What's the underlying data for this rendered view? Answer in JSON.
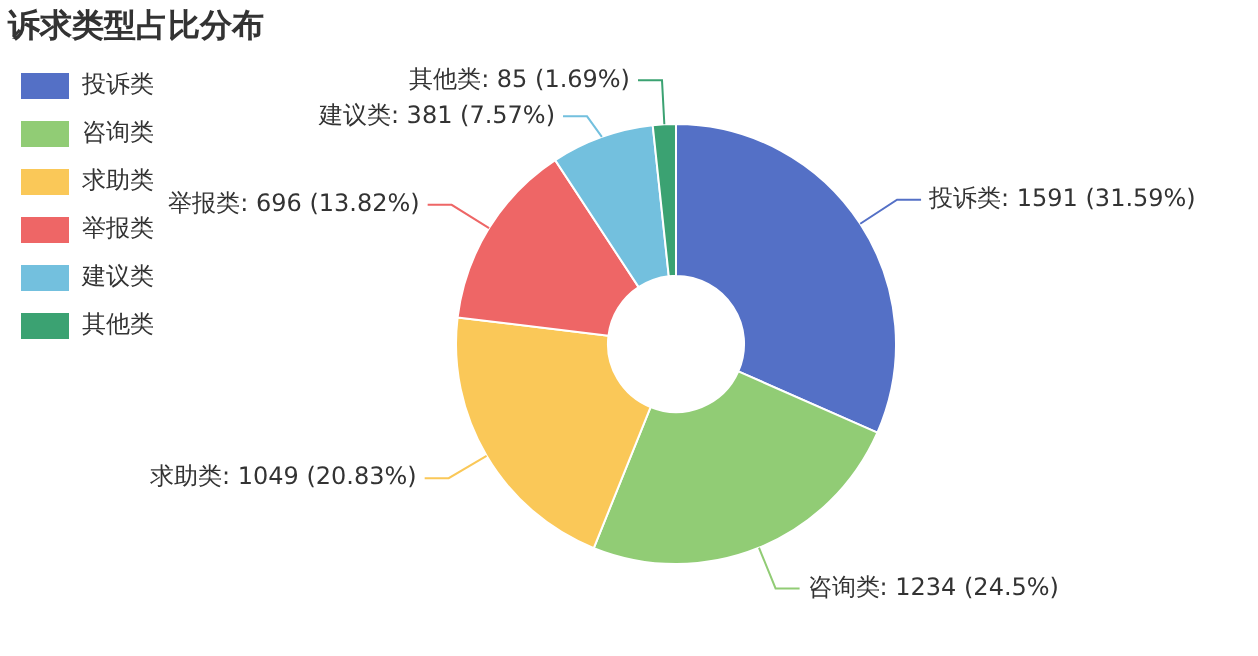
{
  "chart_data": {
    "type": "donut",
    "title": "诉求类型占比分布",
    "categories": [
      "投诉类",
      "咨询类",
      "求助类",
      "举报类",
      "建议类",
      "其他类"
    ],
    "values": [
      1591,
      1234,
      1049,
      696,
      381,
      85
    ],
    "colors": [
      "#5470c6",
      "#91cc75",
      "#fac858",
      "#ee6666",
      "#73c0de",
      "#3ba272"
    ],
    "value_labels": [
      "投诉类: 1591 (31.59%)",
      "咨询类: 1234 (24.5%)",
      "求助类: 1049 (20.83%)",
      "举报类: 696 (13.82%)",
      "建议类: 381 (7.57%)",
      "其他类: 85 (1.69%)"
    ],
    "legend": "top left"
  }
}
